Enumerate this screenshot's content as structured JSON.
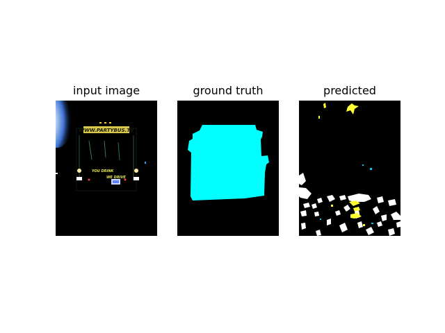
{
  "panels": [
    {
      "title": "input image"
    },
    {
      "title": "ground truth"
    },
    {
      "title": "predicted"
    }
  ],
  "input_image": {
    "sign_text": "WWW.PARTYBUS.TV",
    "side_text_1": "YOU DRINK",
    "side_text_2": "WE DRIVE"
  },
  "colors": {
    "background": "#000000",
    "ground_truth_mask": "#00ffff",
    "prediction_yellow": "#ffff33",
    "prediction_white": "#ffffff",
    "prediction_cyan": "#00ffff"
  }
}
